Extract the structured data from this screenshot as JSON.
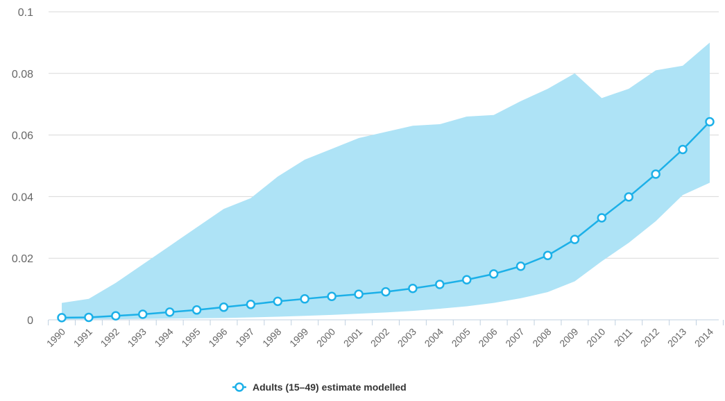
{
  "chart_data": {
    "type": "line",
    "title": "",
    "xlabel": "",
    "ylabel": "",
    "x": [
      1990,
      1991,
      1992,
      1993,
      1994,
      1995,
      1996,
      1997,
      1998,
      1999,
      2000,
      2001,
      2002,
      2003,
      2004,
      2005,
      2006,
      2007,
      2008,
      2009,
      2010,
      2011,
      2012,
      2013,
      2014
    ],
    "x_tick_labels": [
      "1990",
      "1991",
      "1992",
      "1993",
      "1994",
      "1995",
      "1996",
      "1997",
      "1998",
      "1999",
      "2000",
      "2001",
      "2002",
      "2003",
      "2004",
      "2005",
      "2006",
      "2007",
      "2008",
      "2009",
      "2010",
      "2011",
      "2012",
      "2013",
      "2014"
    ],
    "ylim": [
      0,
      0.1
    ],
    "y_ticks": [
      0,
      0.02,
      0.04,
      0.06,
      0.08,
      0.1
    ],
    "y_tick_labels": [
      "0",
      "0.02",
      "0.04",
      "0.06",
      "0.08",
      "0.1"
    ],
    "grid": "horizontal",
    "legend_position": "bottom-center",
    "series": [
      {
        "name": "Adults (15–49) estimate modelled",
        "type": "line",
        "color": "#1cb0e8",
        "values": [
          0.0007,
          0.0008,
          0.0013,
          0.0018,
          0.0025,
          0.0032,
          0.0041,
          0.005,
          0.006,
          0.0068,
          0.0076,
          0.0083,
          0.0091,
          0.0102,
          0.0115,
          0.013,
          0.0149,
          0.0174,
          0.0209,
          0.0261,
          0.0331,
          0.0399,
          0.0473,
          0.0553,
          0.0643
        ]
      },
      {
        "type": "range",
        "color": "#aee3f6",
        "low": [
          0.0001,
          0.0002,
          0.0002,
          0.0003,
          0.0004,
          0.0005,
          0.0006,
          0.0008,
          0.001,
          0.0013,
          0.0016,
          0.002,
          0.0024,
          0.0029,
          0.0036,
          0.0044,
          0.0055,
          0.007,
          0.009,
          0.0125,
          0.019,
          0.025,
          0.032,
          0.0405,
          0.0445
        ],
        "high": [
          0.0055,
          0.0068,
          0.012,
          0.018,
          0.024,
          0.03,
          0.036,
          0.0395,
          0.0465,
          0.052,
          0.0555,
          0.059,
          0.061,
          0.063,
          0.0635,
          0.066,
          0.0665,
          0.071,
          0.075,
          0.08,
          0.072,
          0.075,
          0.081,
          0.0825,
          0.09
        ]
      }
    ]
  }
}
